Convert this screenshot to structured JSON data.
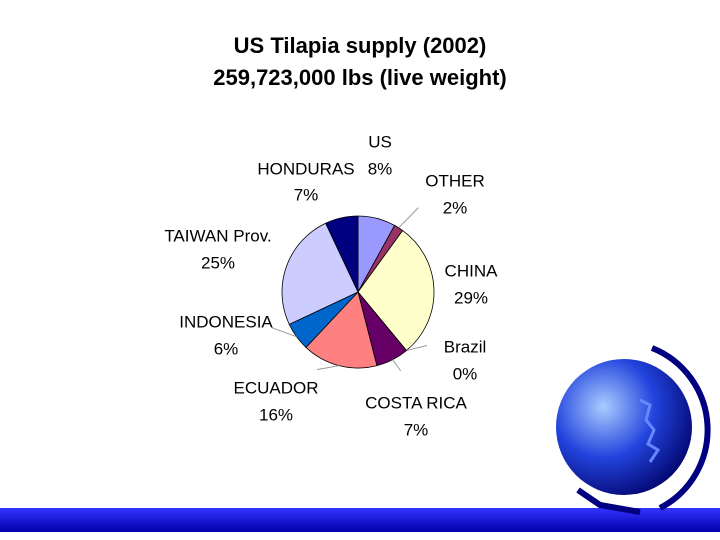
{
  "chart_data": {
    "type": "pie",
    "title": "US Tilapia supply (2002)",
    "subtitle": "259,723,000 lbs (live weight)",
    "categories": [
      "US",
      "OTHER",
      "CHINA",
      "Brazil",
      "COSTA RICA",
      "ECUADOR",
      "INDONESIA",
      "TAIWAN Prov.",
      "HONDURAS"
    ],
    "values": [
      8,
      2,
      29,
      0,
      7,
      16,
      6,
      25,
      7
    ],
    "value_labels": [
      "8%",
      "2%",
      "29%",
      "0%",
      "7%",
      "16%",
      "6%",
      "25%",
      "7%"
    ],
    "colors": [
      "#9999ff",
      "#993366",
      "#ffffcc",
      "#333333",
      "#660066",
      "#ff8080",
      "#0066cc",
      "#ccccff",
      "#000080"
    ]
  }
}
